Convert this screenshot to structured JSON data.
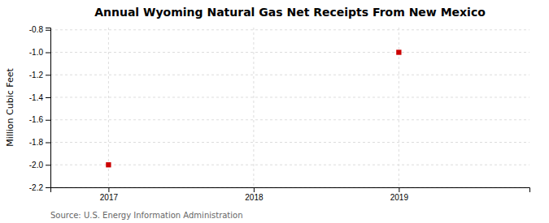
{
  "chart_data": {
    "type": "scatter",
    "title": "Annual Wyoming Natural Gas Net Receipts From New Mexico",
    "y_label": "Million Cubic Feet",
    "annotations": [
      "Source: U.S. Energy Information Administration"
    ],
    "x": [
      2017,
      2019
    ],
    "values": [
      -2.0,
      -1.0
    ],
    "color": "#cc0000",
    "marker": "square",
    "xlim": [
      2016.6,
      2019.9
    ],
    "ylim": [
      -2.2,
      -0.78
    ],
    "xticks": [
      2017,
      2018,
      2019
    ],
    "yticks": [
      -2.2,
      {
        "value": -2.0,
        "label": "-2.0"
      },
      -1.8,
      -1.6,
      -1.4,
      -1.2,
      {
        "value": -1.0,
        "label": "-1.0"
      },
      -0.8
    ],
    "grid": true
  }
}
